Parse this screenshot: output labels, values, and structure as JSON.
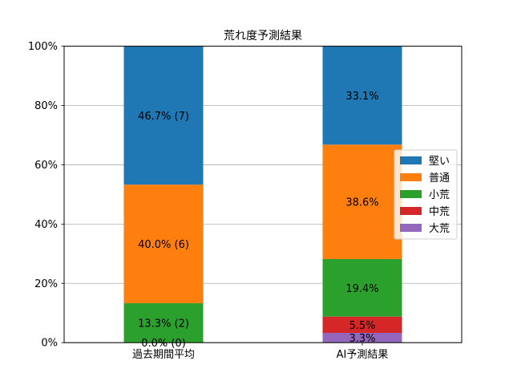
{
  "chart_data": {
    "type": "bar",
    "stacked": true,
    "title": "荒れ度予測結果",
    "categories": [
      "過去期間平均",
      "AI予測結果"
    ],
    "ylim": [
      0,
      100
    ],
    "yticks": [
      0,
      20,
      40,
      60,
      80,
      100
    ],
    "ytick_labels": [
      "0%",
      "20%",
      "40%",
      "60%",
      "80%",
      "100%"
    ],
    "grid": "y",
    "legend_position": "center-right",
    "series": [
      {
        "name": "大荒",
        "color": "#9467bd",
        "values": [
          0.0,
          3.3
        ],
        "labels": [
          "",
          "3.3%"
        ]
      },
      {
        "name": "中荒",
        "color": "#d62728",
        "values": [
          0.0,
          5.5
        ],
        "labels": [
          "0.0% (0)",
          "5.5%"
        ]
      },
      {
        "name": "小荒",
        "color": "#2ca02c",
        "values": [
          13.3,
          19.4
        ],
        "labels": [
          "13.3% (2)",
          "19.4%"
        ]
      },
      {
        "name": "普通",
        "color": "#ff7f0e",
        "values": [
          40.0,
          38.6
        ],
        "labels": [
          "40.0% (6)",
          "38.6%"
        ]
      },
      {
        "name": "堅い",
        "color": "#1f77b4",
        "values": [
          46.7,
          33.1
        ],
        "labels": [
          "46.7% (7)",
          "33.1%"
        ]
      }
    ],
    "legend_order": [
      "堅い",
      "普通",
      "小荒",
      "中荒",
      "大荒"
    ],
    "extra_labels": [
      {
        "category_index": 0,
        "text": "0.0% (0)",
        "y_value": 0
      }
    ]
  }
}
